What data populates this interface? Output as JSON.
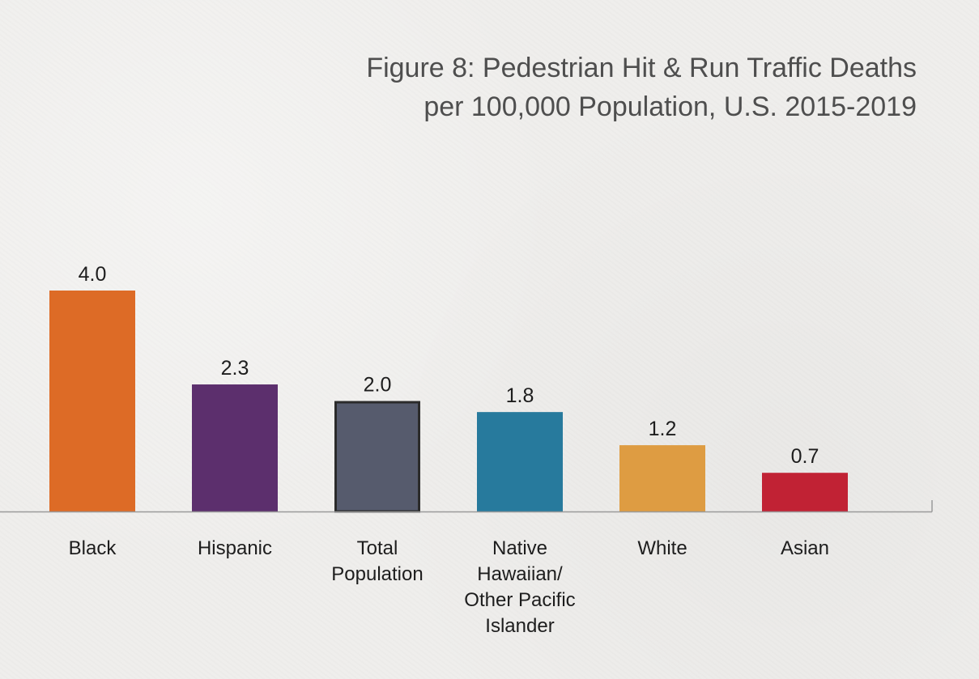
{
  "chart_data": {
    "type": "bar",
    "title_lines": [
      "Figure 8: Pedestrian Hit & Run Traffic Deaths",
      "per 100,000 Population, U.S. 2015-2019"
    ],
    "categories": [
      [
        "Black"
      ],
      [
        "Hispanic"
      ],
      [
        "Total",
        "Population"
      ],
      [
        "Native",
        "Hawaiian/",
        "Other Pacific",
        "Islander"
      ],
      [
        "White"
      ],
      [
        "Asian"
      ]
    ],
    "values": [
      4.0,
      2.3,
      2.0,
      1.8,
      1.2,
      0.7
    ],
    "value_labels": [
      "4.0",
      "2.3",
      "2.0",
      "1.8",
      "1.2",
      "0.7"
    ],
    "colors": [
      "#dd6b26",
      "#5c2f6d",
      "#565b6d",
      "#277a9d",
      "#de9c42",
      "#c12234"
    ],
    "highlight_outline": [
      false,
      false,
      true,
      false,
      false,
      false
    ],
    "xlabel": "",
    "ylabel": "",
    "ylim": [
      0,
      4.6
    ],
    "grid": false,
    "legend": "none"
  }
}
